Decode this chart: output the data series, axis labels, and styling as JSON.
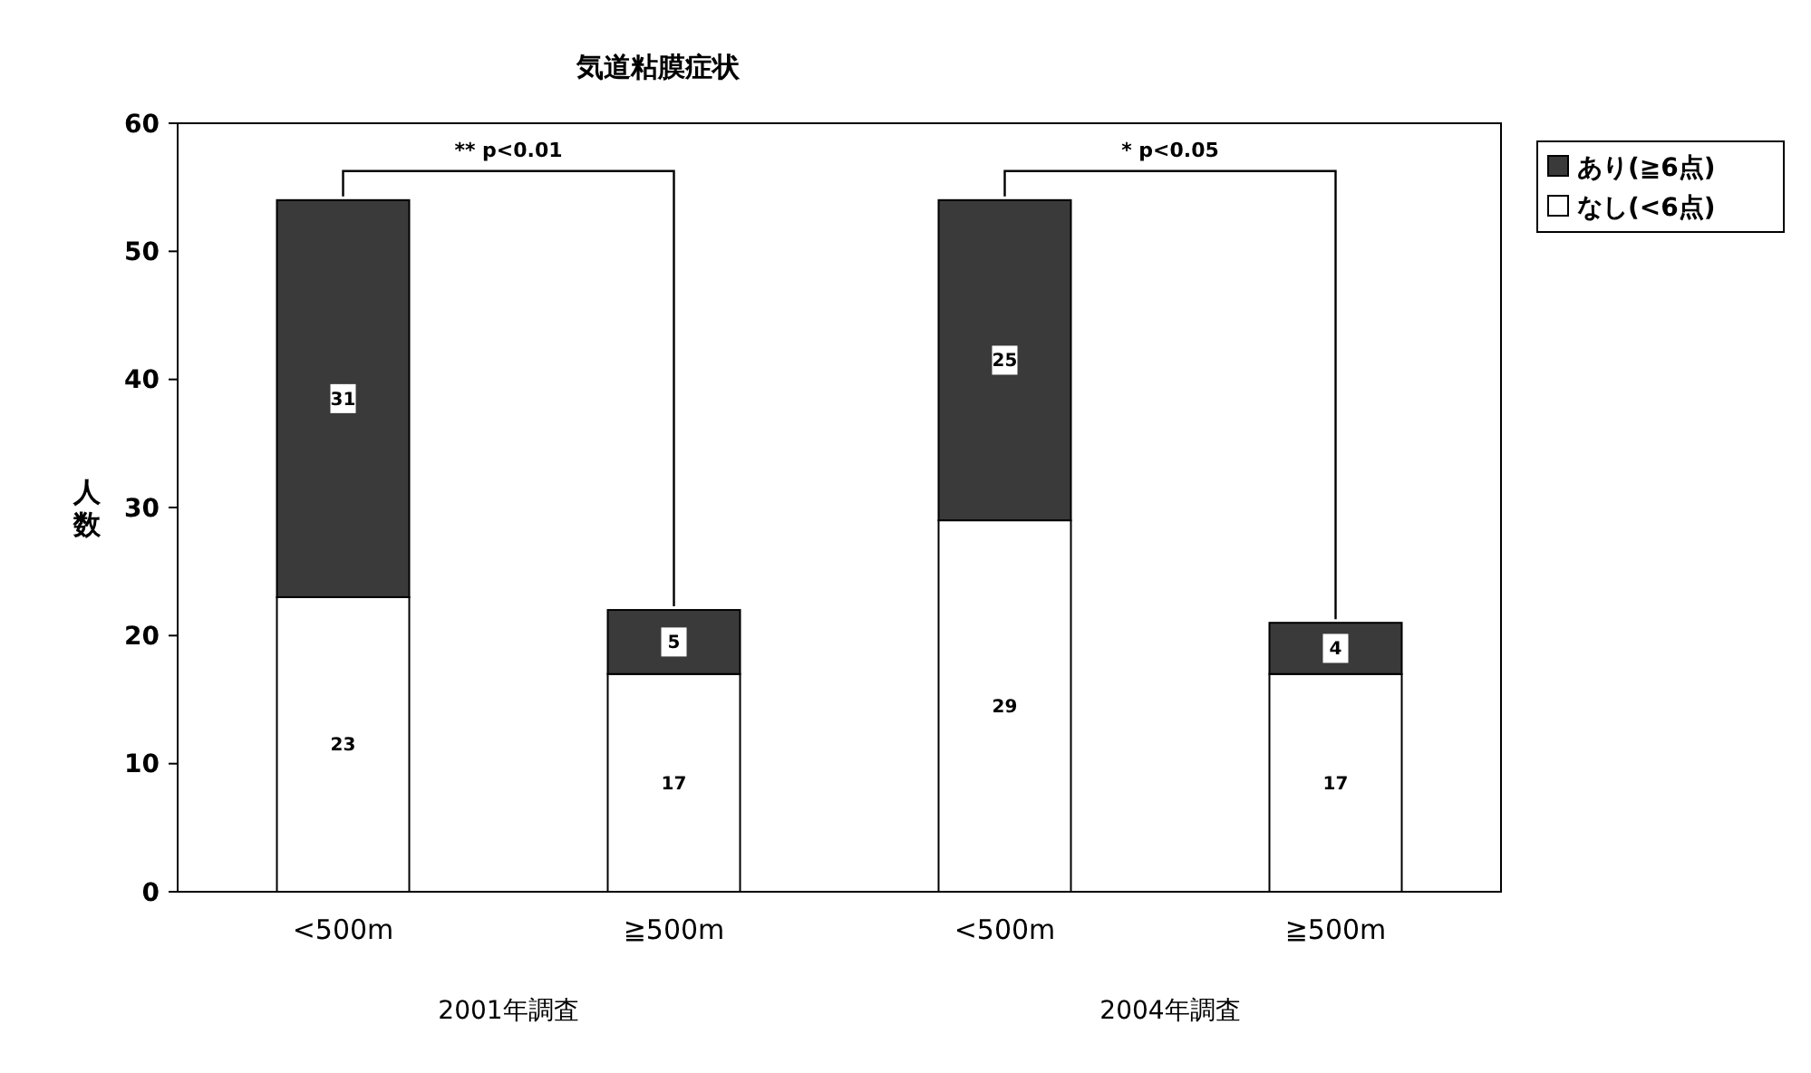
{
  "chart_data": {
    "type": "bar",
    "title": "気道粘膜症状",
    "ylabel": "人数",
    "categories": [
      "<500m",
      "≧500m",
      "<500m",
      "≧500m"
    ],
    "stacked": true,
    "series": [
      {
        "name": "なし(<6点)",
        "color": "#ffffff",
        "values": [
          23,
          17,
          29,
          17
        ]
      },
      {
        "name": "あり(≧6点)",
        "color": "#3a3a3a",
        "values": [
          31,
          5,
          25,
          4
        ]
      }
    ],
    "ylim": [
      0,
      60
    ],
    "yticks": [
      0,
      10,
      20,
      30,
      40,
      50,
      60
    ],
    "grid": false,
    "legend": "top right",
    "data_labels": true,
    "annotations": [
      "** p<0.01",
      "* p<0.05",
      "2001年調査",
      "2004年調査"
    ]
  }
}
